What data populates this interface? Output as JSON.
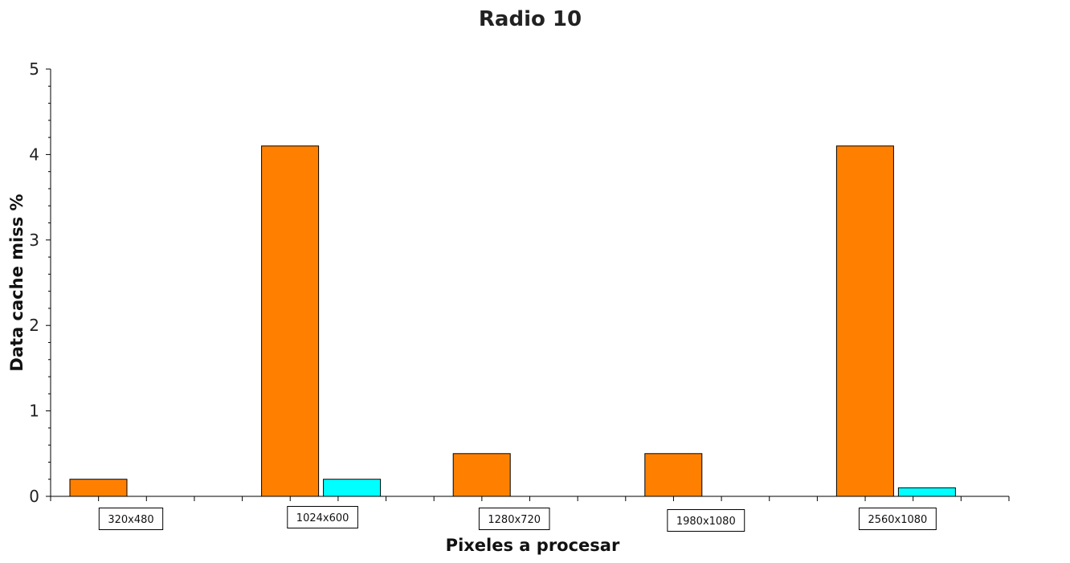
{
  "chart_data": {
    "type": "bar",
    "title": "Radio 10",
    "xlabel": "Pixeles a procesar",
    "ylabel": "Data cache miss %",
    "categories": [
      "320x480",
      "1024x600",
      "1280x720",
      "1980x1080",
      "2560x1080"
    ],
    "series": [
      {
        "color": "#ff8000",
        "values": [
          0.2,
          4.1,
          0.5,
          0.5,
          4.1
        ]
      },
      {
        "color": "#00ffff",
        "values": [
          0,
          0.2,
          0,
          0,
          0.1
        ]
      }
    ],
    "ylim": [
      0,
      5
    ],
    "yticks": [
      0,
      1,
      2,
      3,
      4,
      5
    ],
    "grid": false
  }
}
